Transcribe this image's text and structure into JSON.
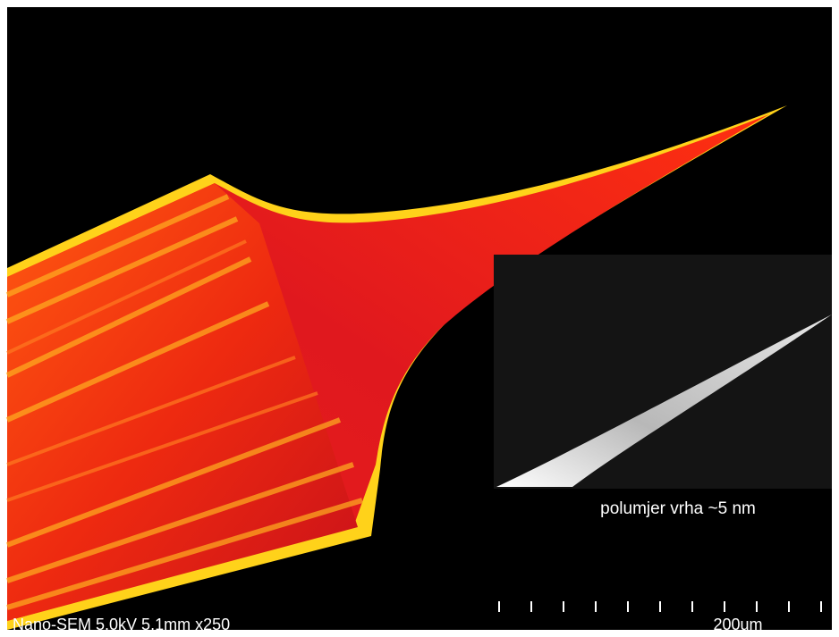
{
  "caption": "polumjer vrha ~5 nm",
  "info_bar": {
    "instrument": "Nano-SEM 5.0kV 5.1mm x250",
    "scale": "200um"
  }
}
